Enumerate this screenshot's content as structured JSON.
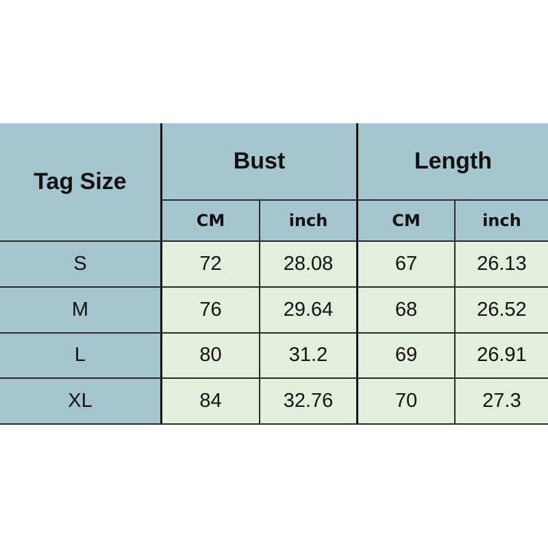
{
  "table": {
    "header": {
      "tag_size": "Tag Size",
      "groups": [
        {
          "label": "Bust",
          "units": [
            "CM",
            "inch"
          ]
        },
        {
          "label": "Length",
          "units": [
            "CM",
            "inch"
          ]
        }
      ]
    },
    "rows": [
      [
        "S",
        "72",
        "28.08",
        "67",
        "26.13"
      ],
      [
        "M",
        "76",
        "29.64",
        "68",
        "26.52"
      ],
      [
        "L",
        "80",
        "31.2",
        "69",
        "26.91"
      ],
      [
        "XL",
        "84",
        "32.76",
        "70",
        "27.3"
      ]
    ]
  }
}
